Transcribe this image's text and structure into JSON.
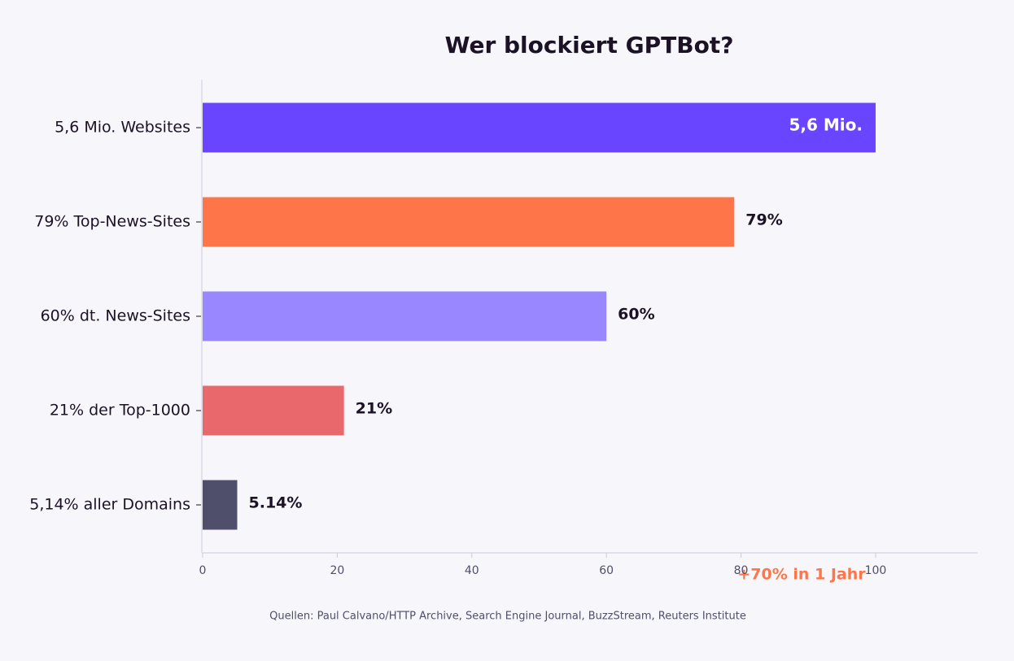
{
  "chart_data": {
    "type": "hbar",
    "title": "Wer blockiert GPTBot?",
    "categories": [
      "5,6 Mio. Websites",
      "79% Top-News-Sites",
      "60% dt. News-Sites",
      "21% der Top-1000",
      "5,14% aller Domains"
    ],
    "values": [
      100,
      79,
      60,
      21,
      5.14
    ],
    "value_labels": [
      null,
      "79%",
      "60%",
      "21%",
      "5.14%"
    ],
    "colors": [
      "#6a45ff",
      "#ff754a",
      "#9887ff",
      "#e8686b",
      "#4f4f6c"
    ],
    "bar_annotation": "5,6 Mio.",
    "annotation": "+70% in 1 Jahr",
    "source": "Quellen: Paul Calvano/HTTP Archive, Search Engine Journal, BuzzStream, Reuters Institute",
    "xlim": [
      0,
      115
    ],
    "xticks": [
      0,
      20,
      40,
      60,
      80,
      100
    ],
    "grid": false
  }
}
